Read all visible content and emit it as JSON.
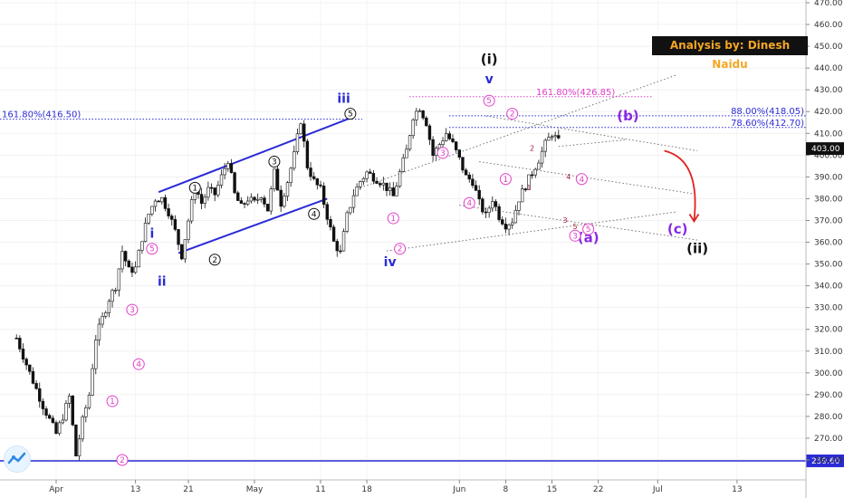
{
  "branding": {
    "text": "Analysis by: Dinesh Naidu"
  },
  "price_tag": "403.00",
  "support_tag": "259.60",
  "colors": {
    "blue": "#2b2bd6",
    "pink": "#e040c8",
    "purple": "#8a2be2",
    "dark": "#111111",
    "red": "#e32121",
    "candle": "#111111"
  },
  "chart_data": {
    "type": "candlestick",
    "ylim": [
      255,
      475
    ],
    "yticks": [
      260,
      270,
      280,
      290,
      300,
      310,
      320,
      330,
      340,
      350,
      360,
      370,
      380,
      390,
      400,
      410,
      420,
      430,
      440,
      450,
      460,
      470
    ],
    "ytick_labels": [
      "260.00",
      "270.00",
      "280.00",
      "290.00",
      "300.00",
      "310.00",
      "320.00",
      "330.00",
      "340.00",
      "350.00",
      "360.00",
      "370.00",
      "380.00",
      "390.00",
      "400.00",
      "410.00",
      "420.00",
      "430.00",
      "440.00",
      "450.00",
      "460.00",
      "470.00"
    ],
    "xticks": [
      {
        "label": "Apr",
        "day": 0
      },
      {
        "label": "13",
        "day": 12
      },
      {
        "label": "21",
        "day": 20
      },
      {
        "label": "May",
        "day": 30
      },
      {
        "label": "11",
        "day": 40
      },
      {
        "label": "18",
        "day": 47
      },
      {
        "label": "Jun",
        "day": 61
      },
      {
        "label": "8",
        "day": 68
      },
      {
        "label": "15",
        "day": 75
      },
      {
        "label": "22",
        "day": 82
      },
      {
        "label": "Jul",
        "day": 91
      },
      {
        "label": "13",
        "day": 103
      }
    ],
    "price_path": [
      [
        -6,
        316
      ],
      [
        -4,
        300
      ],
      [
        -2,
        285
      ],
      [
        0,
        272
      ],
      [
        1,
        280
      ],
      [
        2,
        289
      ],
      [
        3,
        262
      ],
      [
        4,
        278
      ],
      [
        5,
        290
      ],
      [
        6,
        316
      ],
      [
        7,
        325
      ],
      [
        8,
        334
      ],
      [
        9,
        340
      ],
      [
        10,
        356
      ],
      [
        11,
        347
      ],
      [
        12,
        348
      ],
      [
        13,
        362
      ],
      [
        14,
        373
      ],
      [
        15,
        380
      ],
      [
        16,
        380
      ],
      [
        17,
        374
      ],
      [
        18,
        365
      ],
      [
        19,
        354
      ],
      [
        20,
        370
      ],
      [
        21,
        386
      ],
      [
        22,
        378
      ],
      [
        23,
        384
      ],
      [
        24,
        382
      ],
      [
        25,
        390
      ],
      [
        26,
        398
      ],
      [
        27,
        382
      ],
      [
        28,
        376
      ],
      [
        29,
        380
      ],
      [
        30,
        378
      ],
      [
        31,
        382
      ],
      [
        32,
        375
      ],
      [
        33,
        392
      ],
      [
        34,
        378
      ],
      [
        35,
        388
      ],
      [
        36,
        400
      ],
      [
        37,
        416
      ],
      [
        38,
        395
      ],
      [
        39,
        388
      ],
      [
        40,
        384
      ],
      [
        41,
        372
      ],
      [
        42,
        360
      ],
      [
        43,
        355
      ],
      [
        44,
        372
      ],
      [
        45,
        382
      ],
      [
        46,
        388
      ],
      [
        47,
        392
      ],
      [
        48,
        390
      ],
      [
        49,
        388
      ],
      [
        50,
        385
      ],
      [
        51,
        381
      ],
      [
        52,
        392
      ],
      [
        53,
        402
      ],
      [
        54,
        418
      ],
      [
        55,
        422
      ],
      [
        56,
        415
      ],
      [
        57,
        400
      ],
      [
        58,
        405
      ],
      [
        59,
        410
      ],
      [
        60,
        405
      ],
      [
        61,
        398
      ],
      [
        62,
        390
      ],
      [
        63,
        388
      ],
      [
        64,
        378
      ],
      [
        65,
        372
      ],
      [
        66,
        380
      ],
      [
        67,
        372
      ],
      [
        68,
        368
      ],
      [
        69,
        370
      ],
      [
        70,
        380
      ],
      [
        71,
        386
      ],
      [
        72,
        392
      ],
      [
        73,
        398
      ],
      [
        74,
        405
      ],
      [
        75,
        410
      ],
      [
        76,
        406
      ]
    ],
    "horizontal_levels": [
      {
        "value": 416.5,
        "label": "161.80%(416.50)",
        "color": "blue",
        "style": "dotted"
      },
      {
        "value": 426.85,
        "label": "161.80%(426.85)",
        "color": "pink",
        "style": "dotted"
      },
      {
        "value": 418.05,
        "label": "88.00%(418.05)",
        "color": "blue",
        "style": "dotted"
      },
      {
        "value": 412.7,
        "label": "78.60%(412.70)",
        "color": "blue",
        "style": "dotted"
      },
      {
        "value": 259.6,
        "label": "259.60",
        "color": "blue",
        "style": "solid"
      }
    ],
    "wave_labels": [
      {
        "text": "(i)",
        "day": 65.5,
        "y": 442,
        "color": "dark",
        "size": "big"
      },
      {
        "text": "v",
        "day": 65.5,
        "y": 433,
        "color": "blue",
        "size": "mid"
      },
      {
        "text": "iii",
        "day": 43.5,
        "y": 424,
        "color": "blue",
        "size": "mid"
      },
      {
        "text": "i",
        "day": 14.5,
        "y": 362,
        "color": "blue",
        "size": "mid"
      },
      {
        "text": "ii",
        "day": 16,
        "y": 340,
        "color": "blue",
        "size": "mid"
      },
      {
        "text": "iv",
        "day": 50.5,
        "y": 349,
        "color": "blue",
        "size": "mid"
      },
      {
        "text": "(a)",
        "day": 80.5,
        "y": 360,
        "color": "purple",
        "size": "big"
      },
      {
        "text": "(b)",
        "day": 86.5,
        "y": 416,
        "color": "purple",
        "size": "big"
      },
      {
        "text": "(c)",
        "day": 94,
        "y": 364,
        "color": "purple",
        "size": "big"
      },
      {
        "text": "(ii)",
        "day": 97,
        "y": 355,
        "color": "dark",
        "size": "big"
      }
    ],
    "circled_labels": [
      {
        "text": "1",
        "day": 21,
        "y": 385,
        "color": "dark"
      },
      {
        "text": "2",
        "day": 24,
        "y": 352,
        "color": "dark"
      },
      {
        "text": "3",
        "day": 33,
        "y": 397,
        "color": "dark"
      },
      {
        "text": "4",
        "day": 39,
        "y": 373,
        "color": "dark"
      },
      {
        "text": "5",
        "day": 44.5,
        "y": 419,
        "color": "dark"
      },
      {
        "text": "1",
        "day": 8.5,
        "y": 287,
        "color": "pink"
      },
      {
        "text": "2",
        "day": 10,
        "y": 260,
        "color": "pink"
      },
      {
        "text": "3",
        "day": 11.5,
        "y": 329,
        "color": "pink"
      },
      {
        "text": "4",
        "day": 12.5,
        "y": 304,
        "color": "pink"
      },
      {
        "text": "5",
        "day": 14.5,
        "y": 357,
        "color": "pink"
      },
      {
        "text": "1",
        "day": 51,
        "y": 371,
        "color": "pink"
      },
      {
        "text": "2",
        "day": 52,
        "y": 357,
        "color": "pink"
      },
      {
        "text": "3",
        "day": 58.5,
        "y": 401,
        "color": "pink"
      },
      {
        "text": "4",
        "day": 62.5,
        "y": 378,
        "color": "pink"
      },
      {
        "text": "5",
        "day": 65.5,
        "y": 425,
        "color": "pink"
      },
      {
        "text": "1",
        "day": 68,
        "y": 389,
        "color": "pink"
      },
      {
        "text": "2",
        "day": 69,
        "y": 419,
        "color": "pink"
      },
      {
        "text": "3",
        "day": 78.5,
        "y": 363,
        "color": "pink"
      },
      {
        "text": "4",
        "day": 79.5,
        "y": 389,
        "color": "pink"
      },
      {
        "text": "5",
        "day": 80.5,
        "y": 366,
        "color": "pink"
      }
    ],
    "small_labels": [
      {
        "text": "2",
        "day": 72,
        "y": 402,
        "color": "red"
      },
      {
        "text": "1",
        "day": 71.5,
        "y": 384,
        "color": "red"
      },
      {
        "text": "4",
        "day": 77.5,
        "y": 389,
        "color": "red"
      },
      {
        "text": "3",
        "day": 77,
        "y": 369,
        "color": "red"
      },
      {
        "text": "5",
        "day": 78.5,
        "y": 366,
        "color": "red"
      }
    ]
  }
}
